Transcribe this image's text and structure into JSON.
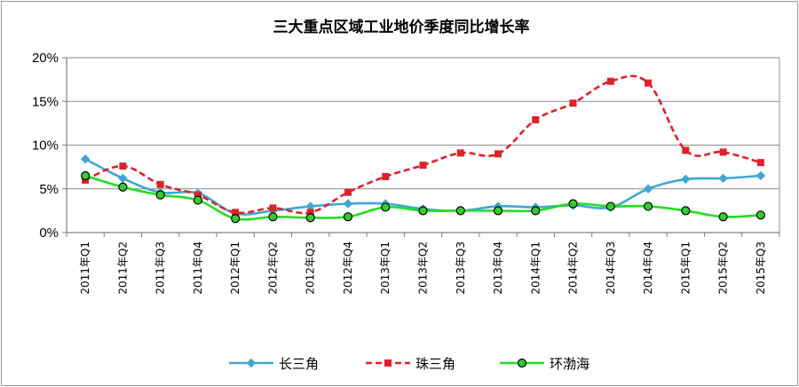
{
  "chart_data": {
    "type": "line",
    "title": "三大重点区域工业地价季度同比增长率",
    "ylim": [
      0,
      20
    ],
    "yticks": [
      "0%",
      "5%",
      "10%",
      "15%",
      "20%"
    ],
    "ytick_values": [
      0,
      5,
      10,
      15,
      20
    ],
    "grid": "horizontal",
    "legend_position": "bottom",
    "categories": [
      "2011年Q1",
      "2011年Q2",
      "2011年Q3",
      "2011年Q4",
      "2012年Q1",
      "2012年Q2",
      "2012年Q3",
      "2012年Q4",
      "2013年Q1",
      "2013年Q2",
      "2013年Q3",
      "2013年Q4",
      "2014年Q1",
      "2014年Q2",
      "2014年Q3",
      "2014年Q4",
      "2015年Q1",
      "2015年Q2",
      "2015年Q3"
    ],
    "series": [
      {
        "name": "长三角",
        "color": "#3fa7d6",
        "dash": "solid",
        "marker": "diamond",
        "values": [
          8.4,
          6.2,
          4.6,
          4.5,
          2.2,
          2.5,
          3.0,
          3.3,
          3.3,
          2.7,
          2.5,
          3.0,
          2.9,
          3.1,
          2.9,
          5.0,
          6.1,
          6.2,
          6.5
        ]
      },
      {
        "name": "珠三角",
        "color": "#e0202a",
        "dash": "dashed",
        "marker": "square",
        "values": [
          6.0,
          7.6,
          5.5,
          4.3,
          2.3,
          2.8,
          2.3,
          4.6,
          6.4,
          7.7,
          9.1,
          9.0,
          12.9,
          14.8,
          17.3,
          17.1,
          9.4,
          9.2,
          8.0
        ]
      },
      {
        "name": "环渤海",
        "color": "#22dd22",
        "dash": "solid",
        "marker": "circle",
        "values": [
          6.5,
          5.2,
          4.3,
          3.7,
          1.6,
          1.8,
          1.7,
          1.8,
          2.9,
          2.5,
          2.5,
          2.5,
          2.5,
          3.3,
          3.0,
          3.0,
          2.5,
          1.8,
          2.0
        ]
      }
    ]
  }
}
